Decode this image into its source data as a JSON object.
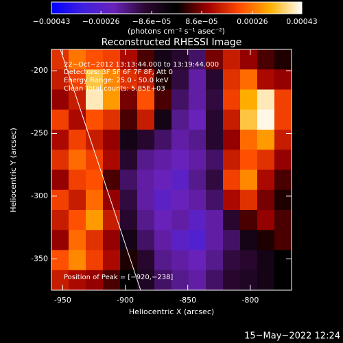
{
  "chart_data": {
    "type": "heatmap",
    "title": "Reconstructed RHESSI Image",
    "xlabel": "Heliocentric X (arcsec)",
    "ylabel": "Heliocentric Y (arcsec)",
    "colorbar_label": "(photons cm⁻² s⁻¹ asec⁻²)",
    "annotations": [
      "22−Oct−2012 13:13:44.000 to 13:19:44.000",
      "Detectors: 3F 5F 6F 7F 8F, Att 0",
      "Energy Range: 25.0 - 50.0 keV",
      "Clean    Total counts: 5.85E+03",
      "Position of Peak = [−920,−238]"
    ],
    "footer": "15−May−2022 12:24",
    "xlim": [
      -959,
      -767
    ],
    "ylim": [
      -375,
      -183
    ],
    "xticks": [
      -950,
      -900,
      -850,
      -800
    ],
    "yticks": [
      -200,
      -250,
      -300,
      -350
    ],
    "clim": [
      -0.00043,
      0.00043
    ],
    "cticks": [
      {
        "value": -0.00043,
        "label": "−0.00043"
      },
      {
        "value": -0.00026,
        "label": "−0.00026"
      },
      {
        "value": -8.6e-05,
        "label": "−8.6e−05"
      },
      {
        "value": 8.6e-05,
        "label": "8.6e−05"
      },
      {
        "value": 0.00026,
        "label": "0.00026"
      },
      {
        "value": 0.00043,
        "label": "0.00043"
      }
    ],
    "colormap": [
      "#0000ff",
      "#4020e0",
      "#6a22b8",
      "#2a0830",
      "#000000",
      "#a00000",
      "#ff4a00",
      "#ffb000",
      "#ffffff"
    ],
    "z": [
      [
        0.00018,
        0.00026,
        0.00022,
        0.0002,
        0.00012,
        5e-05,
        -5e-05,
        -0.0001,
        -0.00015,
        8e-05,
        0.00015,
        0.0001,
        5e-05,
        2e-05
      ],
      [
        0.00015,
        0.0002,
        0.00035,
        0.00028,
        0.00018,
        0.00015,
        2e-05,
        -0.00012,
        -0.0002,
        -0.0001,
        0.00018,
        0.00025,
        0.00012,
        0.0001
      ],
      [
        0.0001,
        0.00015,
        0.0004,
        0.0003,
        8e-05,
        0.00022,
        5e-05,
        -0.00015,
        -0.0002,
        -0.00012,
        0.0002,
        0.00032,
        0.0004,
        0.0002
      ],
      [
        0.0002,
        0.00012,
        0.00022,
        0.00018,
        5e-05,
        0.00015,
        -5e-05,
        -0.00018,
        -0.00022,
        -0.0001,
        0.00015,
        0.00035,
        0.00042,
        0.0002
      ],
      [
        0.00012,
        0.0002,
        0.00015,
        0.0001,
        -5e-05,
        -0.0001,
        -0.00015,
        -0.0002,
        -0.00018,
        -0.0001,
        0.0001,
        0.00025,
        0.0003,
        0.00015
      ],
      [
        0.00018,
        0.00025,
        0.0002,
        0.00012,
        -0.0001,
        -0.00018,
        -0.0002,
        -0.00022,
        -0.0002,
        -0.00015,
        0.00015,
        0.00022,
        0.00018,
        0.0001
      ],
      [
        0.0001,
        0.0002,
        0.00022,
        5e-05,
        -0.00015,
        -0.0002,
        -0.00022,
        -0.00025,
        -0.00018,
        -0.00012,
        0.0002,
        0.00028,
        0.00012,
        5e-05
      ],
      [
        0.0002,
        0.00015,
        0.00025,
        0.0001,
        -0.00012,
        -0.0002,
        -0.00025,
        -0.00022,
        -0.0002,
        -0.00015,
        0.00012,
        0.00018,
        8e-05,
        2e-05
      ],
      [
        0.00015,
        0.00022,
        0.0003,
        0.00015,
        -0.0001,
        -0.00018,
        -0.00022,
        -0.0002,
        -0.00025,
        -0.0002,
        -0.0001,
        5e-05,
        0.0001,
        5e-05
      ],
      [
        0.0001,
        0.00025,
        0.00018,
        0.0001,
        -5e-05,
        -0.00015,
        -0.0002,
        -0.00025,
        -0.00028,
        -0.0002,
        -0.00015,
        -5e-05,
        2e-05,
        5e-05
      ],
      [
        0.00022,
        0.00028,
        0.0002,
        0.00012,
        2e-05,
        -0.0001,
        -0.00018,
        -0.0002,
        -0.00022,
        -0.00018,
        -0.00012,
        -0.0001,
        -5e-05,
        0
      ],
      [
        0.00015,
        0.00012,
        0.0001,
        5e-05,
        0,
        -8e-05,
        -0.00015,
        -0.00018,
        -0.0002,
        -0.00015,
        -0.0001,
        -8e-05,
        -5e-05,
        0
      ]
    ]
  }
}
